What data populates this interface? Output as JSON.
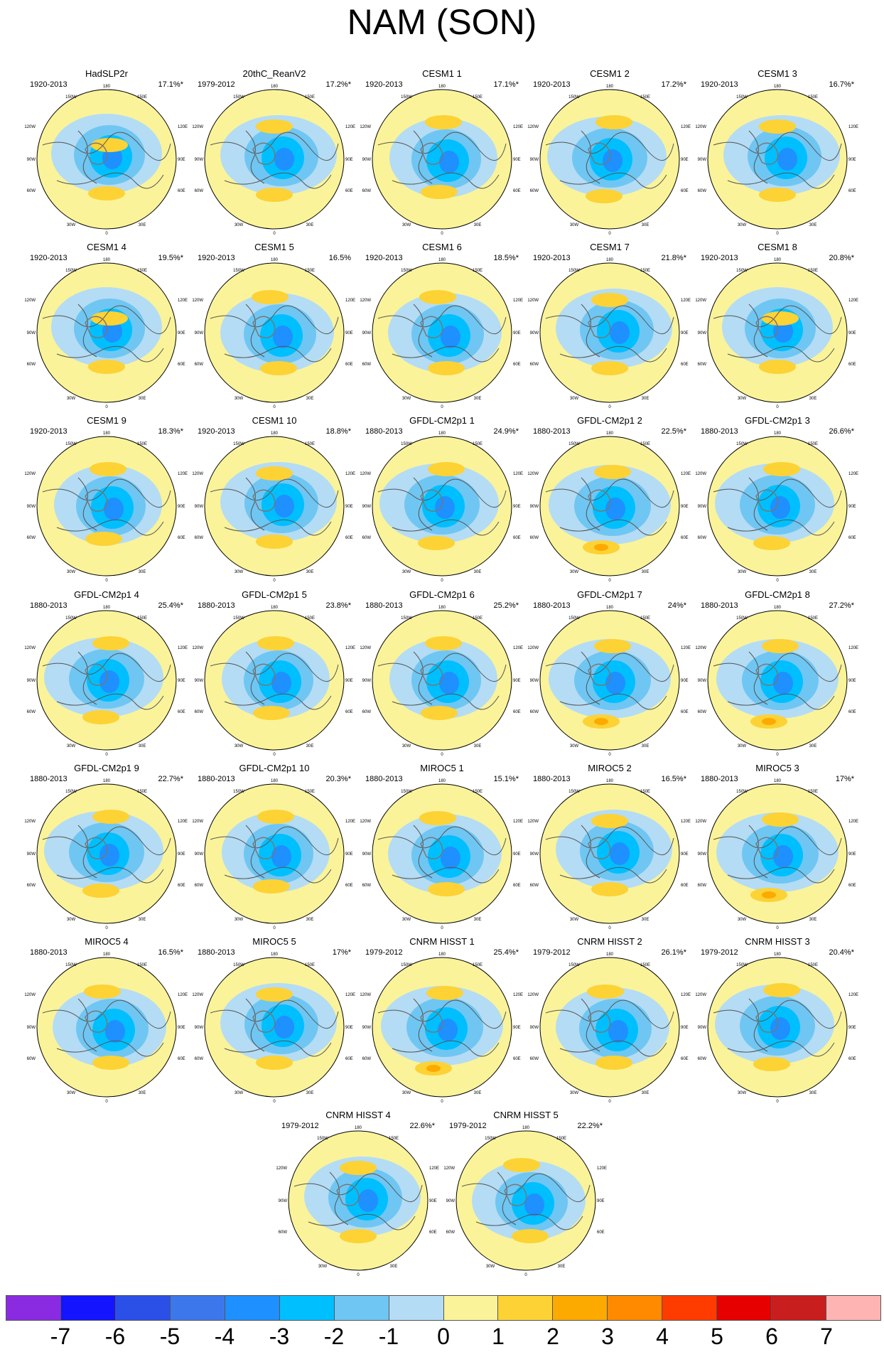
{
  "title": "NAM (SON)",
  "panels": [
    {
      "name": "HadSLP2r",
      "period": "1920-2013",
      "pct": "17.1%*",
      "pattern": 0
    },
    {
      "name": "20thC_ReanV2",
      "period": "1979-2012",
      "pct": "17.2%*",
      "pattern": 1
    },
    {
      "name": "CESM1 1",
      "period": "1920-2013",
      "pct": "17.1%*",
      "pattern": 2
    },
    {
      "name": "CESM1 2",
      "period": "1920-2013",
      "pct": "17.2%*",
      "pattern": 3
    },
    {
      "name": "CESM1 3",
      "period": "1920-2013",
      "pct": "16.7%*",
      "pattern": 1
    },
    {
      "name": "CESM1 4",
      "period": "1920-2013",
      "pct": "19.5%*",
      "pattern": 0
    },
    {
      "name": "CESM1 5",
      "period": "1920-2013",
      "pct": "16.5%",
      "pattern": 4
    },
    {
      "name": "CESM1 6",
      "period": "1920-2013",
      "pct": "18.5%*",
      "pattern": 4
    },
    {
      "name": "CESM1 7",
      "period": "1920-2013",
      "pct": "21.8%*",
      "pattern": 1
    },
    {
      "name": "CESM1 8",
      "period": "1920-2013",
      "pct": "20.8%*",
      "pattern": 0
    },
    {
      "name": "CESM1 9",
      "period": "1920-2013",
      "pct": "18.3%*",
      "pattern": 2
    },
    {
      "name": "CESM1 10",
      "period": "1920-2013",
      "pct": "18.8%*",
      "pattern": 1
    },
    {
      "name": "GFDL-CM2p1 1",
      "period": "1880-2013",
      "pct": "24.9%*",
      "pattern": 3
    },
    {
      "name": "GFDL-CM2p1 2",
      "period": "1880-2013",
      "pct": "22.5%*",
      "pattern": 5
    },
    {
      "name": "GFDL-CM2p1 3",
      "period": "1880-2013",
      "pct": "26.6%*",
      "pattern": 3
    },
    {
      "name": "GFDL-CM2p1 4",
      "period": "1880-2013",
      "pct": "25.4%*",
      "pattern": 3
    },
    {
      "name": "GFDL-CM2p1 5",
      "period": "1880-2013",
      "pct": "23.8%*",
      "pattern": 2
    },
    {
      "name": "GFDL-CM2p1 6",
      "period": "1880-2013",
      "pct": "25.2%*",
      "pattern": 2
    },
    {
      "name": "GFDL-CM2p1 7",
      "period": "1880-2013",
      "pct": "24%*",
      "pattern": 5
    },
    {
      "name": "GFDL-CM2p1 8",
      "period": "1880-2013",
      "pct": "27.2%*",
      "pattern": 5
    },
    {
      "name": "GFDL-CM2p1 9",
      "period": "1880-2013",
      "pct": "22.7%*",
      "pattern": 3
    },
    {
      "name": "GFDL-CM2p1 10",
      "period": "1880-2013",
      "pct": "20.3%*",
      "pattern": 2
    },
    {
      "name": "MIROC5 1",
      "period": "1880-2013",
      "pct": "15.1%*",
      "pattern": 4
    },
    {
      "name": "MIROC5 2",
      "period": "1880-2013",
      "pct": "16.5%*",
      "pattern": 1
    },
    {
      "name": "MIROC5 3",
      "period": "1880-2013",
      "pct": "17%*",
      "pattern": 5
    },
    {
      "name": "MIROC5 4",
      "period": "1880-2013",
      "pct": "16.5%*",
      "pattern": 4
    },
    {
      "name": "MIROC5 5",
      "period": "1880-2013",
      "pct": "17%*",
      "pattern": 1
    },
    {
      "name": "CNRM HISST 1",
      "period": "1979-2012",
      "pct": "25.4%*",
      "pattern": 5
    },
    {
      "name": "CNRM HISST 2",
      "period": "1979-2012",
      "pct": "26.1%*",
      "pattern": 4
    },
    {
      "name": "CNRM HISST 3",
      "period": "1979-2012",
      "pct": "20.4%*",
      "pattern": 3
    },
    {
      "name": "CNRM HISST 4",
      "period": "1979-2012",
      "pct": "22.6%*",
      "pattern": 1
    },
    {
      "name": "CNRM HISST 5",
      "period": "1979-2012",
      "pct": "22.2%*",
      "pattern": 4
    }
  ],
  "map_labels": {
    "lon_top": "180",
    "lon_top_left": "150W",
    "lon_top_right": "150E",
    "lon_120w": "120W",
    "lon_120e": "120E",
    "lon_90w": "90W",
    "lon_90e": "90E",
    "lon_60w": "60W",
    "lon_60e": "60E",
    "lon_30w": "30W",
    "lon_30e": "30E",
    "lon_bottom": "0"
  },
  "colorbar": {
    "colors": [
      "#8a2be2",
      "#1414ff",
      "#2a50e8",
      "#3c78ec",
      "#1e90ff",
      "#00bfff",
      "#6fc6f2",
      "#b4dcf4",
      "#faf39a",
      "#fcd235",
      "#fcaa00",
      "#ff8a00",
      "#ff3c00",
      "#e60000",
      "#c81e1e",
      "#ffb4b4"
    ],
    "labels": [
      "-7",
      "-6",
      "-5",
      "-4",
      "-3",
      "-2",
      "-1",
      "0",
      "1",
      "2",
      "3",
      "4",
      "5",
      "6",
      "7"
    ]
  }
}
